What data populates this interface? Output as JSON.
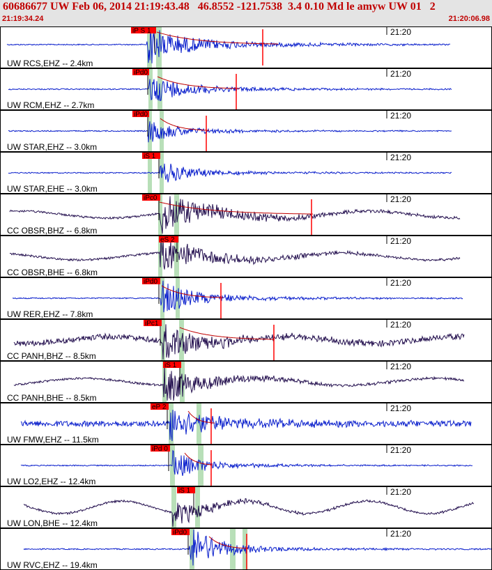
{
  "header": {
    "title": "60686677 UW Feb 06, 2014 21:19:43.48   46.8552 -121.7538  3.4 0.10 Md le amyw UW 01   2",
    "time_start": "21:19:34.24",
    "time_end": "21:20:06.98"
  },
  "colors": {
    "header_text": "#c00000",
    "trace_ehz": "#0a1fcc",
    "trace_bh": "#24104f",
    "pick": "#ff0000",
    "window": "#b8dfb8",
    "coda": "#c00000"
  },
  "traces": [
    {
      "station": "UW RCS,EHZ -- 2.4km",
      "pick": "iP S 1",
      "time_label": "21:20",
      "type": "ehz"
    },
    {
      "station": "UW RCM,EHZ -- 2.7km",
      "pick": "iPd0",
      "time_label": "21:20",
      "type": "ehz"
    },
    {
      "station": "UW STAR,EHZ -- 3.0km",
      "pick": "iPd0",
      "time_label": "21:20",
      "type": "ehz"
    },
    {
      "station": "UW STAR,EHE -- 3.0km",
      "pick": "iS 1",
      "time_label": "21:20",
      "type": "ehz"
    },
    {
      "station": "CC OBSR,BHZ -- 6.8km",
      "pick": "iPc0",
      "time_label": "21:20",
      "type": "bh"
    },
    {
      "station": "CC OBSR,BHE -- 6.8km",
      "pick": "eS 2",
      "time_label": "21:20",
      "type": "bh"
    },
    {
      "station": "UW RER,EHZ -- 7.8km",
      "pick": "iPd0",
      "time_label": "21:20",
      "type": "ehz"
    },
    {
      "station": "CC PANH,BHZ -- 8.5km",
      "pick": "iPc1",
      "time_label": "21:20",
      "type": "bh"
    },
    {
      "station": "CC PANH,BHE -- 8.5km",
      "pick": "iS 1",
      "time_label": "21:20",
      "type": "bh"
    },
    {
      "station": "UW FMW,EHZ -- 11.5km",
      "pick": "eP 2",
      "time_label": "21:20",
      "type": "ehz"
    },
    {
      "station": "UW LO2,EHZ -- 12.4km",
      "pick": "iPd 0",
      "time_label": "21:20",
      "type": "ehz"
    },
    {
      "station": "UW LON,BHE -- 12.4km",
      "pick": "iS 1",
      "time_label": "21:20",
      "type": "bh"
    },
    {
      "station": "UW RVC,EHZ -- 19.4km",
      "pick": "iPd0",
      "time_label": "21:20",
      "type": "ehz"
    }
  ]
}
